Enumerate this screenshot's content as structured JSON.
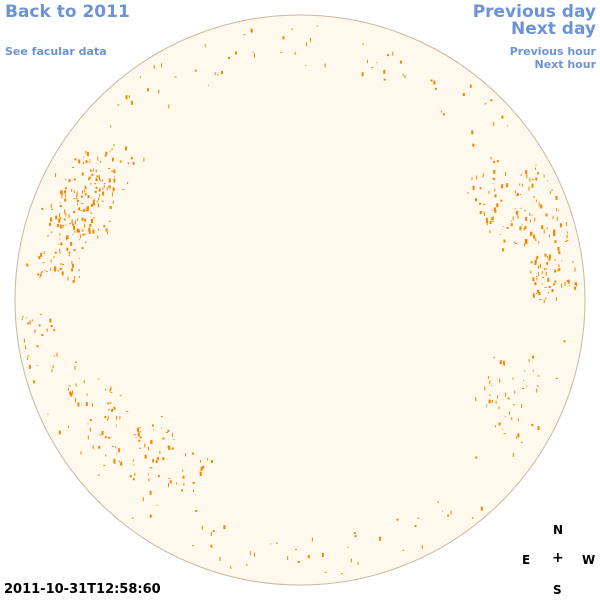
{
  "nav": {
    "back": "Back to 2011",
    "facular": "See facular data",
    "prev_day": "Previous day",
    "next_day": "Next day",
    "prev_hour": "Previous hour",
    "next_hour": "Next hour"
  },
  "timestamp": "2011-10-31T12:58:60",
  "compass": {
    "north": "N",
    "east": "E",
    "center": "+",
    "west": "W",
    "south": "S"
  },
  "colors": {
    "disk_fill": "#fff8ec",
    "disk_stroke": "#c8b8a0",
    "facula": "#ee8800",
    "link": "#6b93d6"
  }
}
